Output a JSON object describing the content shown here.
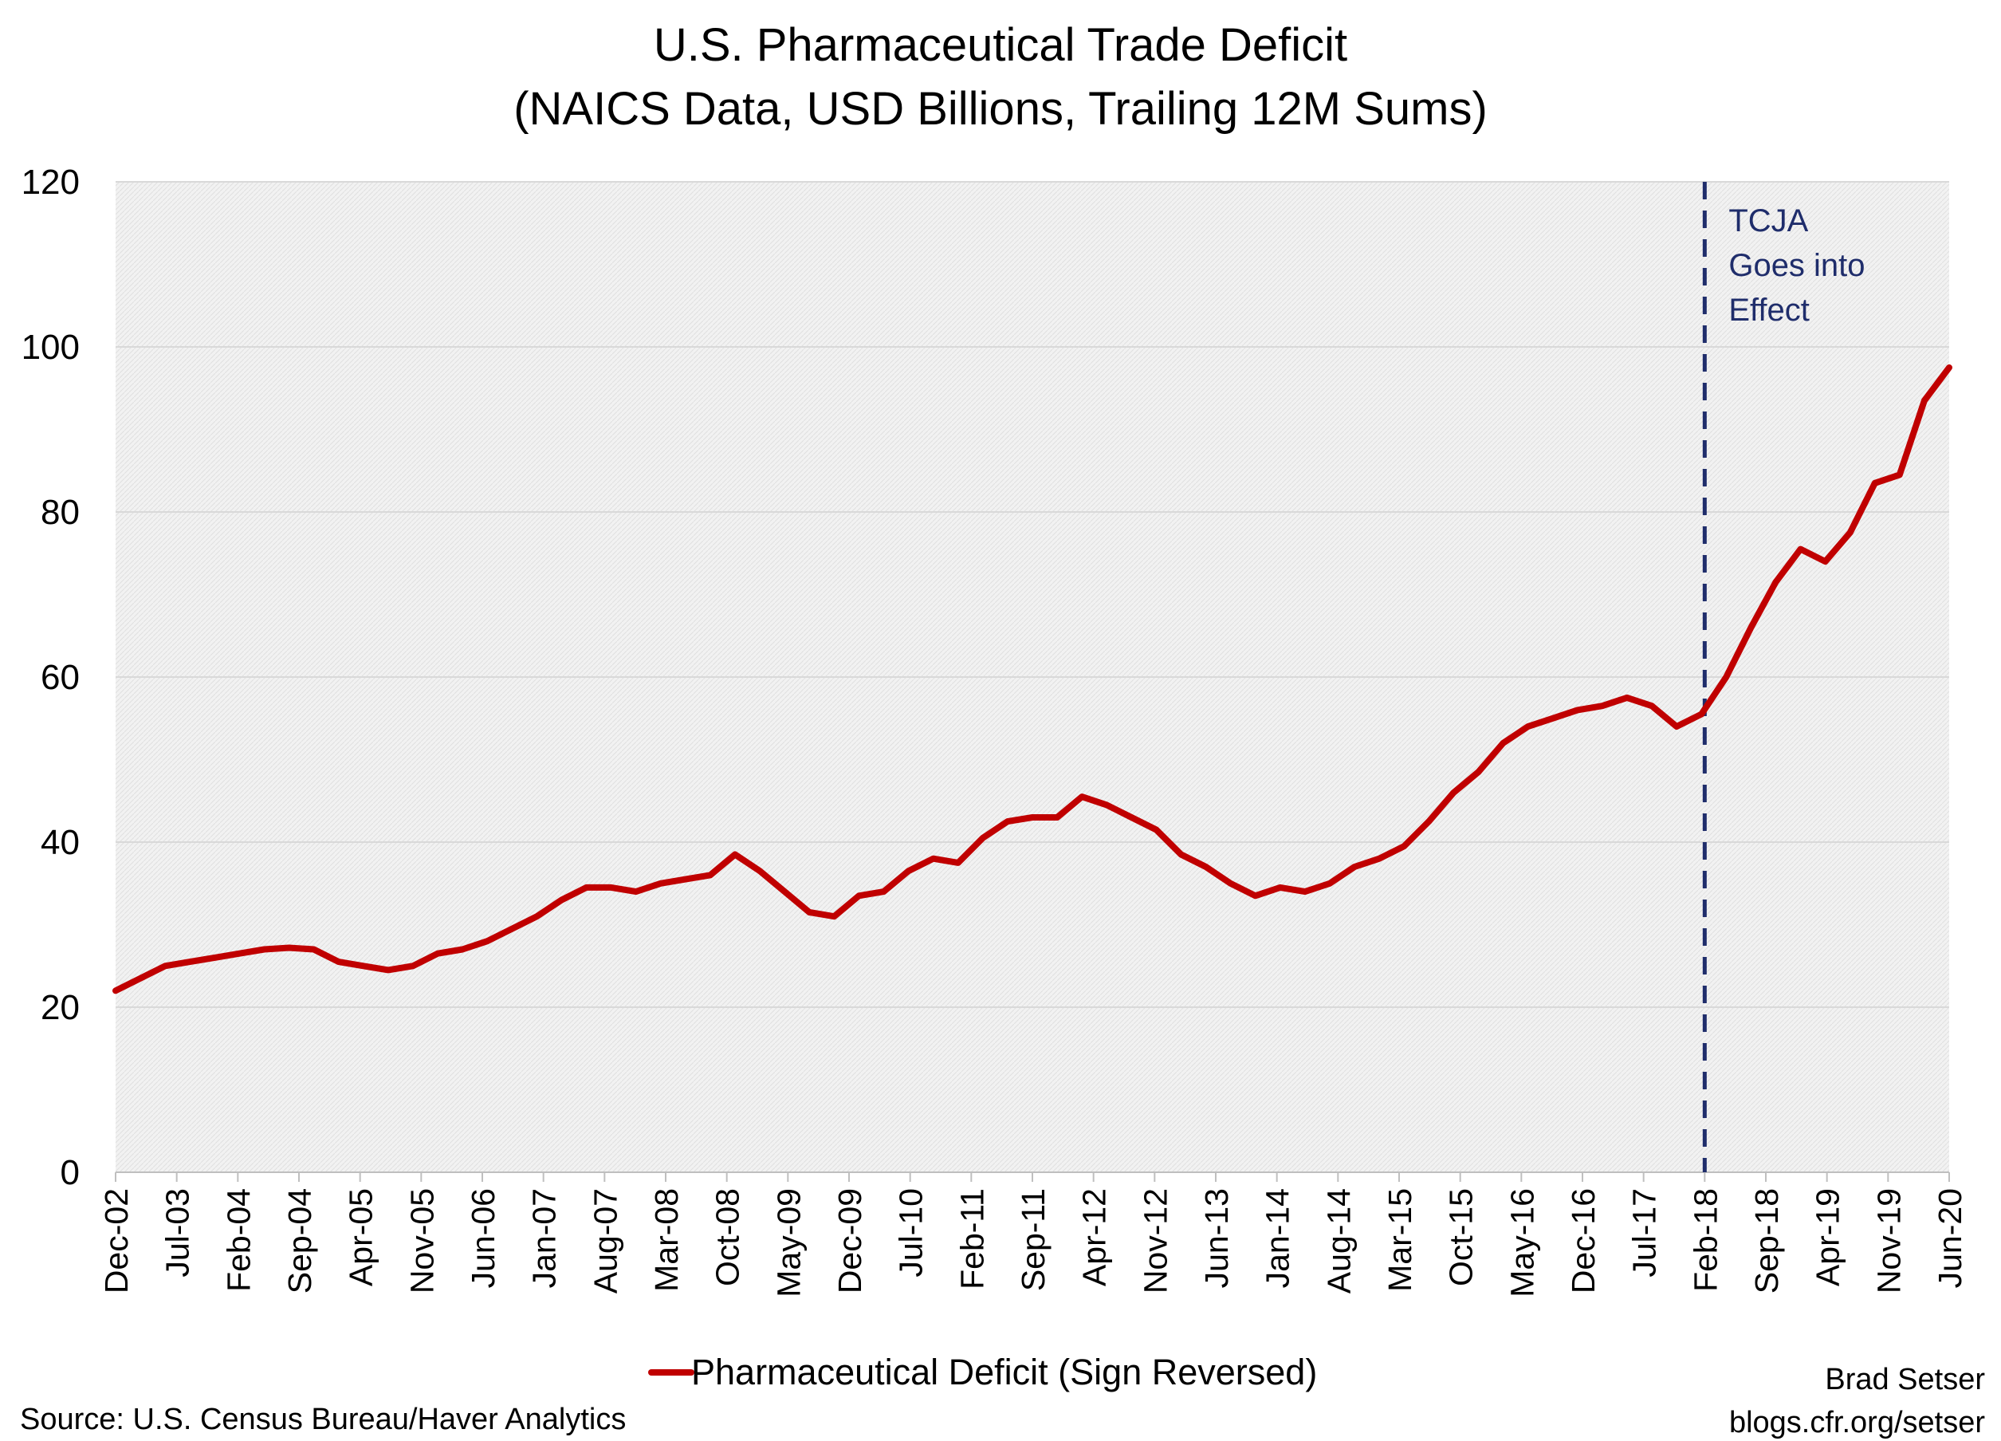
{
  "chart_data": {
    "type": "line",
    "title": "U.S. Pharmaceutical Trade Deficit",
    "subtitle": "(NAICS Data, USD Billions, Trailing 12M Sums)",
    "xlabel": "",
    "ylabel": "",
    "ylim": [
      0,
      120
    ],
    "y_ticks": [
      0,
      20,
      40,
      60,
      80,
      100,
      120
    ],
    "x_tick_labels": [
      "Dec-02",
      "Jul-03",
      "Feb-04",
      "Sep-04",
      "Apr-05",
      "Nov-05",
      "Jun-06",
      "Jan-07",
      "Aug-07",
      "Mar-08",
      "Oct-08",
      "May-09",
      "Dec-09",
      "Jul-10",
      "Feb-11",
      "Sep-11",
      "Apr-12",
      "Nov-12",
      "Jun-13",
      "Jan-14",
      "Aug-14",
      "Mar-15",
      "Oct-15",
      "May-16",
      "Dec-16",
      "Jul-17",
      "Feb-18",
      "Sep-18",
      "Apr-19",
      "Nov-19",
      "Jun-20"
    ],
    "grid": true,
    "legend_position": "bottom",
    "series": [
      {
        "name": "Pharmaceutical Deficit (Sign Reversed)",
        "color": "#c00000",
        "x_start": "Dec-02",
        "x_end": "Jun-20",
        "frequency": "quarterly",
        "values": [
          22.0,
          23.5,
          25.0,
          25.5,
          26.0,
          26.5,
          27.0,
          27.2,
          27.0,
          25.5,
          25.0,
          24.5,
          25.0,
          26.5,
          27.0,
          28.0,
          29.5,
          31.0,
          33.0,
          34.5,
          34.5,
          34.0,
          35.0,
          35.5,
          36.0,
          38.5,
          36.5,
          34.0,
          31.5,
          31.0,
          33.5,
          34.0,
          36.5,
          38.0,
          37.5,
          40.5,
          42.5,
          43.0,
          43.0,
          45.5,
          44.5,
          43.0,
          41.5,
          38.5,
          37.0,
          35.0,
          33.5,
          34.5,
          34.0,
          35.0,
          37.0,
          38.0,
          39.5,
          42.5,
          46.0,
          48.5,
          52.0,
          54.0,
          55.0,
          56.0,
          56.5,
          57.5,
          56.5,
          54.0,
          55.5,
          60.0,
          66.0,
          71.5,
          75.5,
          74.0,
          77.5,
          83.5,
          84.5,
          93.5,
          97.5
        ]
      }
    ],
    "annotations": [
      {
        "x": "Feb-18",
        "lines": [
          "TCJA",
          "Goes into",
          "Effect"
        ],
        "style": "dashed-vertical",
        "color": "#1f2d6b"
      }
    ]
  },
  "legend": {
    "label": "Pharmaceutical Deficit (Sign Reversed)"
  },
  "footer": {
    "source": "Source: U.S. Census Bureau/Haver Analytics",
    "author": "Brad Setser",
    "url": "blogs.cfr.org/setser"
  }
}
